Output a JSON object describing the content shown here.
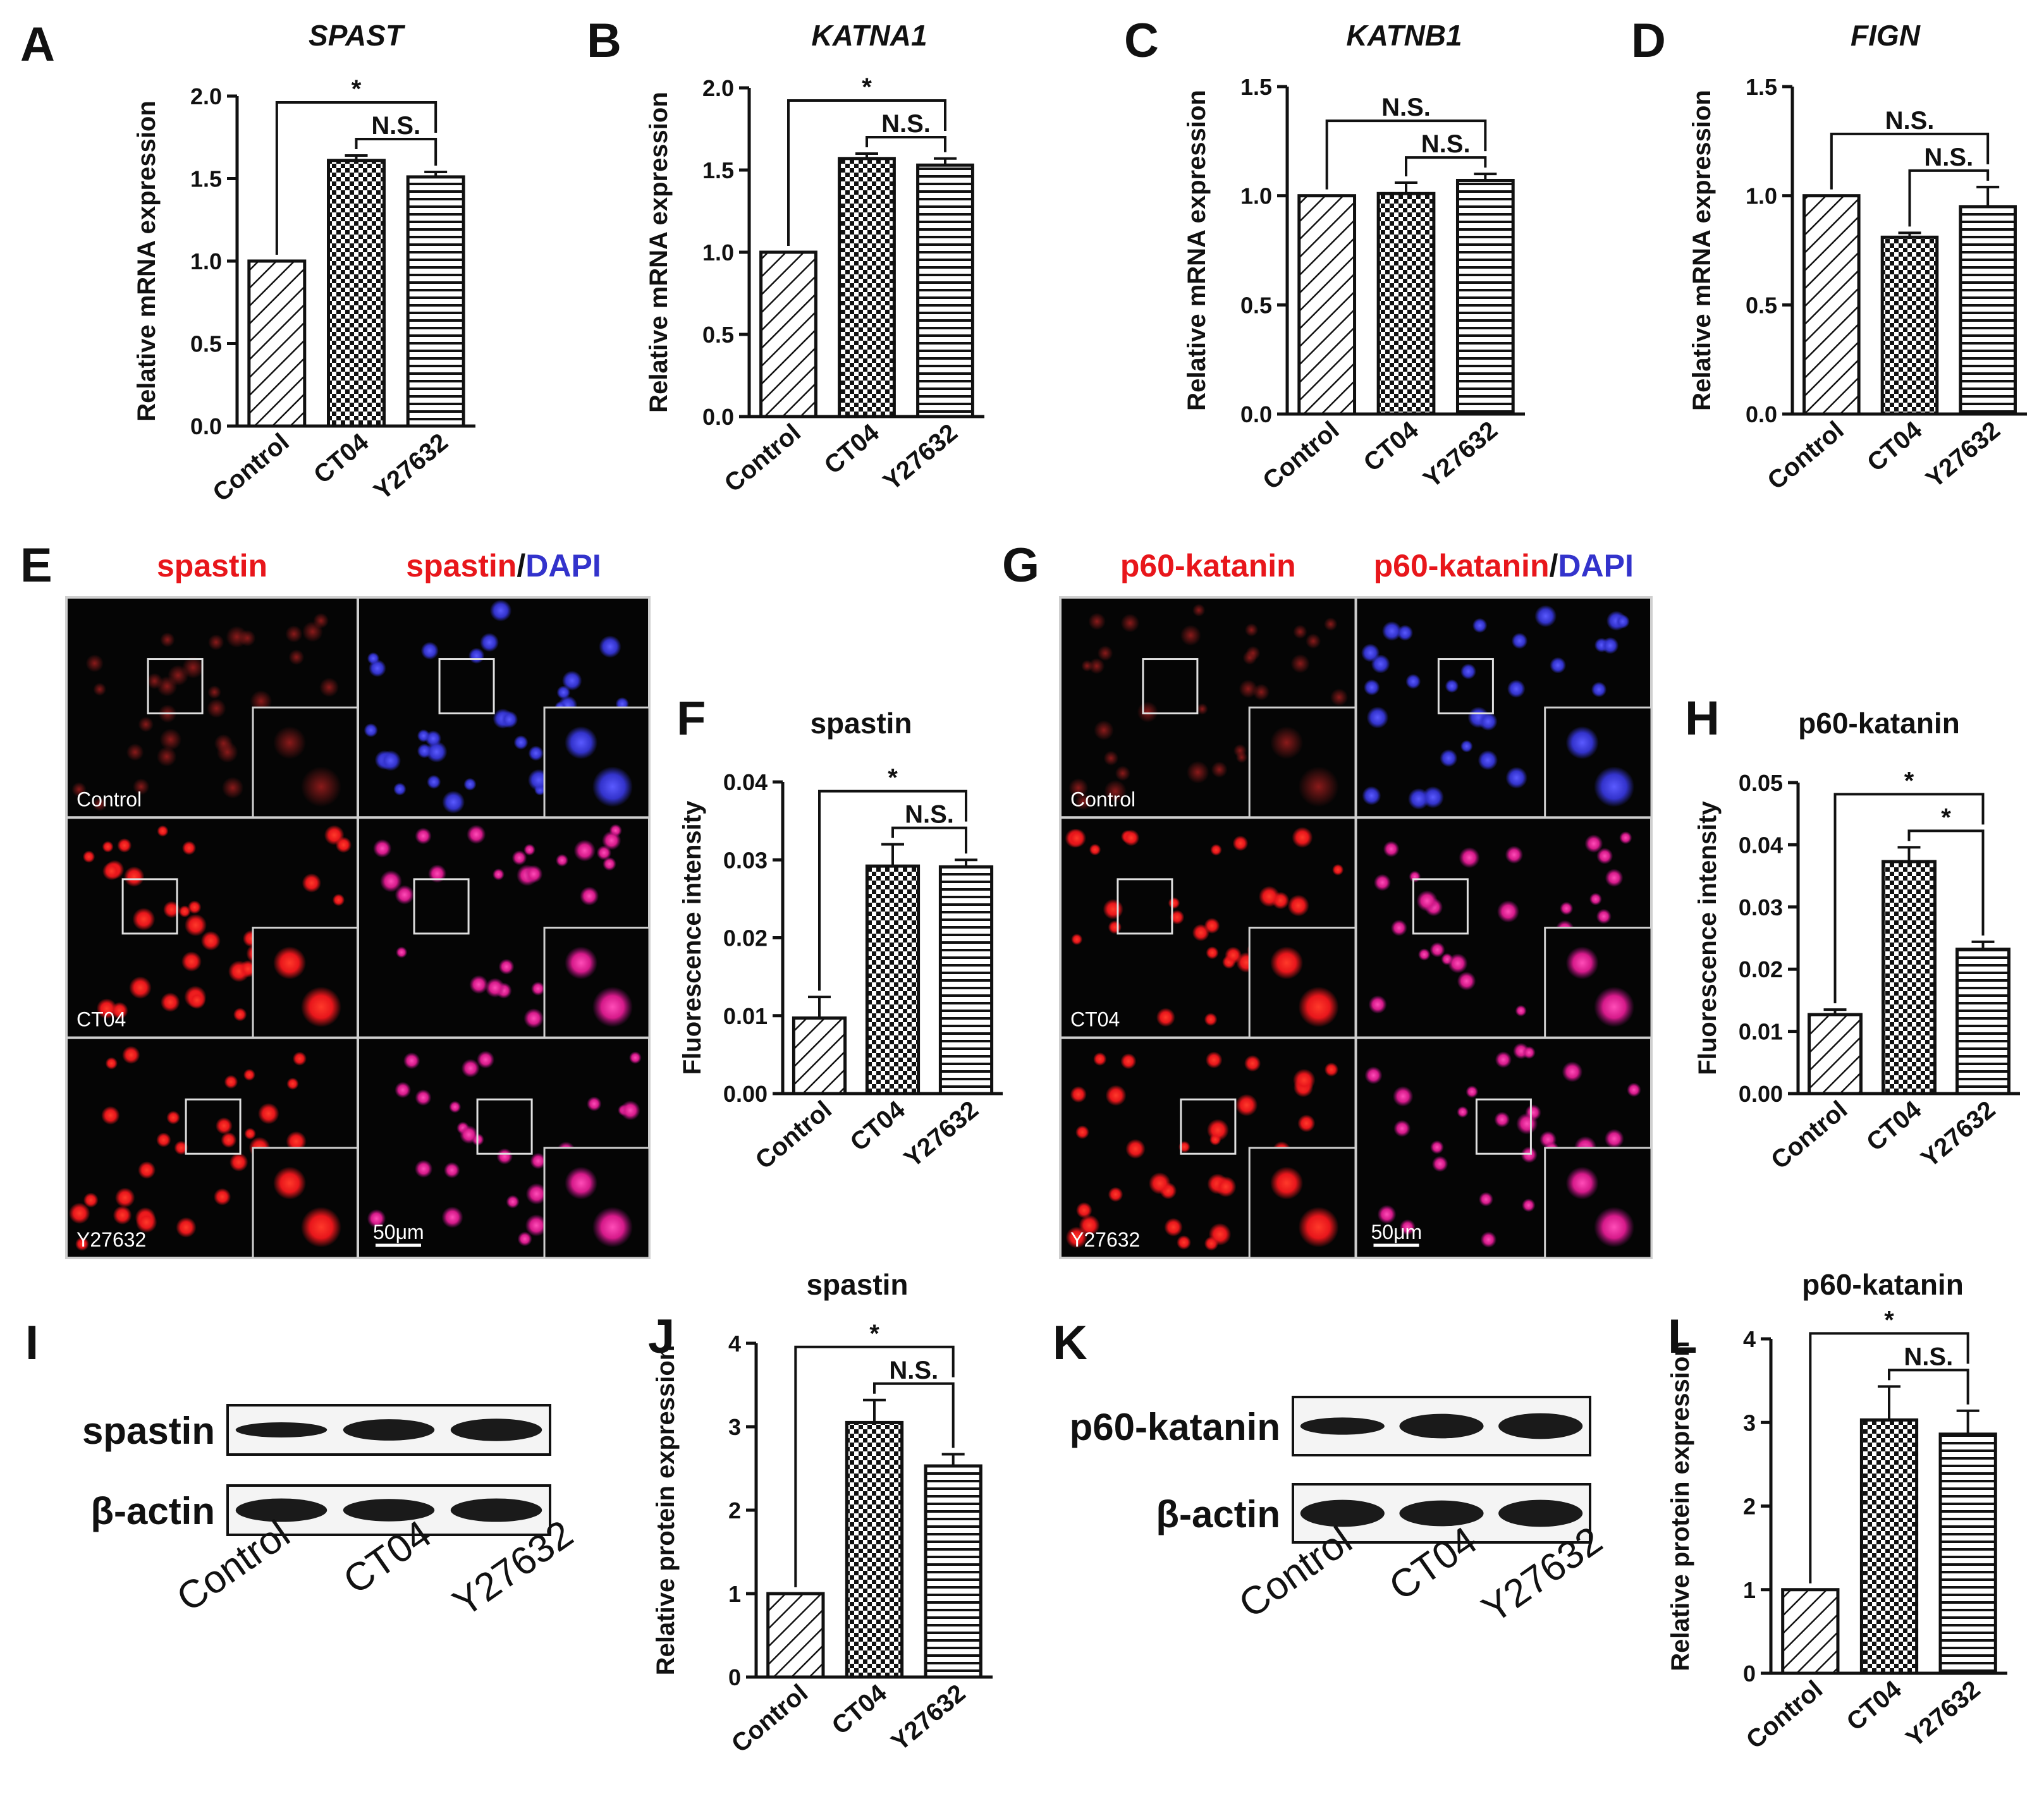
{
  "colors": {
    "red": "#e8161b",
    "blue": "#3333cc",
    "ink": "#111111"
  },
  "charts": [
    {
      "type": "bar",
      "panel": "A",
      "title": "SPAST",
      "title_italic": true,
      "ylabel": "Relative mRNA expression",
      "categories": [
        "Control",
        "CT04",
        "Y27632"
      ],
      "values": [
        1.0,
        1.61,
        1.51
      ],
      "errors": [
        0,
        0.03,
        0.03
      ],
      "yticks": [
        "0.0",
        "0.5",
        "1.0",
        "1.5",
        "2.0"
      ],
      "tick_values": [
        0,
        0.5,
        1.0,
        1.5,
        2.0
      ],
      "ylim": [
        0,
        2.0
      ],
      "sig_outer": "*",
      "sig_inner": "N.S.",
      "patterns": [
        "diag",
        "check",
        "horiz"
      ]
    },
    {
      "type": "bar",
      "panel": "B",
      "title": "KATNA1",
      "title_italic": true,
      "ylabel": "Relative mRNA expression",
      "categories": [
        "Control",
        "CT04",
        "Y27632"
      ],
      "values": [
        1.0,
        1.57,
        1.53
      ],
      "errors": [
        0,
        0.03,
        0.04
      ],
      "yticks": [
        "0.0",
        "0.5",
        "1.0",
        "1.5",
        "2.0"
      ],
      "tick_values": [
        0,
        0.5,
        1.0,
        1.5,
        2.0
      ],
      "ylim": [
        0,
        2.0
      ],
      "sig_outer": "*",
      "sig_inner": "N.S.",
      "patterns": [
        "diag",
        "check",
        "horiz"
      ]
    },
    {
      "type": "bar",
      "panel": "C",
      "title": "KATNB1",
      "title_italic": true,
      "ylabel": "Relative mRNA expression",
      "categories": [
        "Control",
        "CT04",
        "Y27632"
      ],
      "values": [
        1.0,
        1.01,
        1.07
      ],
      "errors": [
        0,
        0.05,
        0.03
      ],
      "yticks": [
        "0.0",
        "0.5",
        "1.0",
        "1.5"
      ],
      "tick_values": [
        0,
        0.5,
        1.0,
        1.5
      ],
      "ylim": [
        0,
        1.5
      ],
      "sig_outer": "N.S.",
      "sig_inner": "N.S.",
      "patterns": [
        "diag",
        "check",
        "horiz"
      ]
    },
    {
      "type": "bar",
      "panel": "D",
      "title": "FIGN",
      "title_italic": true,
      "ylabel": "Relative mRNA expression",
      "categories": [
        "Control",
        "CT04",
        "Y27632"
      ],
      "values": [
        1.0,
        0.81,
        0.95
      ],
      "errors": [
        0,
        0.02,
        0.09
      ],
      "yticks": [
        "0.0",
        "0.5",
        "1.0",
        "1.5"
      ],
      "tick_values": [
        0,
        0.5,
        1.0,
        1.5
      ],
      "ylim": [
        0,
        1.5
      ],
      "sig_outer": "N.S.",
      "sig_inner": "N.S.",
      "patterns": [
        "diag",
        "check",
        "horiz"
      ]
    },
    {
      "type": "bar",
      "panel": "F",
      "title": "spastin",
      "title_italic": false,
      "ylabel": "Fluorescence intensity",
      "categories": [
        "Control",
        "CT04",
        "Y27632"
      ],
      "values": [
        0.0097,
        0.0292,
        0.0291
      ],
      "errors": [
        0.0027,
        0.0028,
        0.0009
      ],
      "yticks": [
        "0.00",
        "0.01",
        "0.02",
        "0.03",
        "0.04"
      ],
      "tick_values": [
        0,
        0.01,
        0.02,
        0.03,
        0.04
      ],
      "ylim": [
        0,
        0.04
      ],
      "sig_outer": "*",
      "sig_inner": "N.S.",
      "patterns": [
        "diag",
        "check",
        "horiz"
      ]
    },
    {
      "type": "bar",
      "panel": "H",
      "title": "p60-katanin",
      "title_italic": false,
      "ylabel": "Fluorescence intensity",
      "categories": [
        "Control",
        "CT04",
        "Y27632"
      ],
      "values": [
        0.0127,
        0.0373,
        0.0232
      ],
      "errors": [
        0.0008,
        0.0023,
        0.0012
      ],
      "yticks": [
        "0.00",
        "0.01",
        "0.02",
        "0.03",
        "0.04",
        "0.05"
      ],
      "tick_values": [
        0,
        0.01,
        0.02,
        0.03,
        0.04,
        0.05
      ],
      "ylim": [
        0,
        0.05
      ],
      "sig_outer": "*",
      "sig_inner": "*",
      "patterns": [
        "diag",
        "check",
        "horiz"
      ]
    },
    {
      "type": "bar",
      "panel": "J",
      "title": "spastin",
      "title_italic": false,
      "ylabel": "Relative protein expression",
      "categories": [
        "Control",
        "CT04",
        "Y27632"
      ],
      "values": [
        1.0,
        3.05,
        2.53
      ],
      "errors": [
        0,
        0.27,
        0.14
      ],
      "yticks": [
        "0",
        "1",
        "2",
        "3",
        "4"
      ],
      "tick_values": [
        0,
        1,
        2,
        3,
        4
      ],
      "ylim": [
        0,
        4
      ],
      "sig_outer": "*",
      "sig_inner": "N.S.",
      "patterns": [
        "diag",
        "check",
        "horiz"
      ]
    },
    {
      "type": "bar",
      "panel": "L",
      "title": "p60-katanin",
      "title_italic": false,
      "ylabel": "Relative protein expression",
      "categories": [
        "Control",
        "CT04",
        "Y27632"
      ],
      "values": [
        1.0,
        3.03,
        2.86
      ],
      "errors": [
        0,
        0.4,
        0.28
      ],
      "yticks": [
        "0",
        "1",
        "2",
        "3",
        "4"
      ],
      "tick_values": [
        0,
        1,
        2,
        3,
        4
      ],
      "ylim": [
        0,
        4
      ],
      "sig_outer": "*",
      "sig_inner": "N.S.",
      "patterns": [
        "diag",
        "check",
        "horiz"
      ]
    }
  ],
  "micrographs": [
    {
      "panel": "E",
      "title_left": "spastin",
      "title_right_a": "spastin",
      "title_right_sep": "/",
      "title_right_b": "DAPI",
      "rows": [
        "Control",
        "CT04",
        "Y27632"
      ],
      "scale_bar": "50μm"
    },
    {
      "panel": "G",
      "title_left": "p60-katanin",
      "title_right_a": "p60-katanin",
      "title_right_sep": "/",
      "title_right_b": "DAPI",
      "rows": [
        "Control",
        "CT04",
        "Y27632"
      ],
      "scale_bar": "50μm"
    }
  ],
  "blots": [
    {
      "panel": "I",
      "protein": "spastin",
      "loading": "β-actin",
      "lanes": [
        "Control",
        "CT04",
        "Y27632"
      ]
    },
    {
      "panel": "K",
      "protein": "p60-katanin",
      "loading": "β-actin",
      "lanes": [
        "Control",
        "CT04",
        "Y27632"
      ]
    }
  ]
}
